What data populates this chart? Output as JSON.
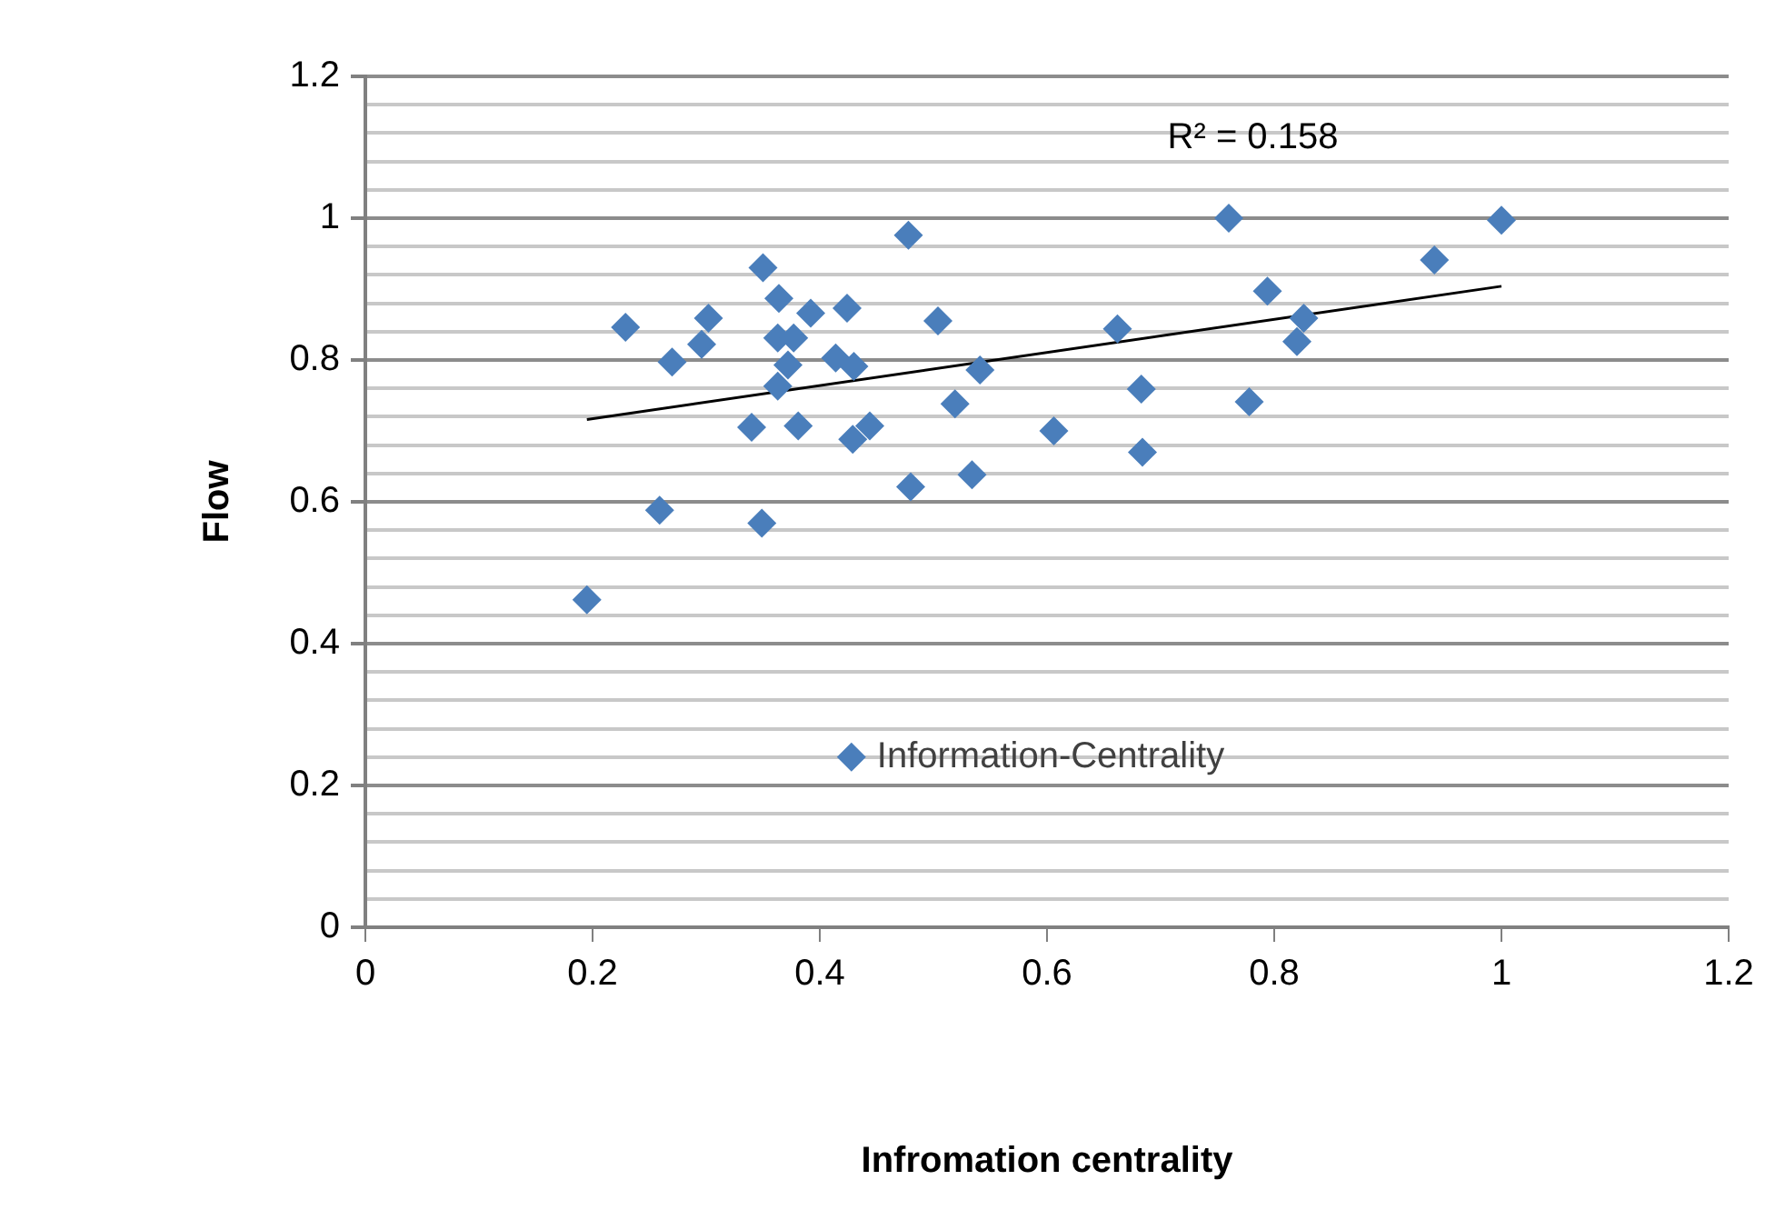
{
  "chart_data": {
    "type": "scatter",
    "xlabel": "Infromation centrality",
    "ylabel": "Flow",
    "xlim": [
      0,
      1.2
    ],
    "xticks": [
      0,
      0.2,
      0.4,
      0.6,
      0.8,
      1,
      1.2
    ],
    "ylim": [
      0,
      1.2
    ],
    "yticks": [
      0,
      {
        "value": 0.04,
        "label": null
      },
      {
        "value": 0.08,
        "label": null
      },
      {
        "value": 0.12,
        "label": null
      },
      {
        "value": 0.16,
        "label": null
      },
      0.2,
      {
        "value": 0.24,
        "label": null
      },
      {
        "value": 0.28,
        "label": null
      },
      {
        "value": 0.32,
        "label": null
      },
      {
        "value": 0.36,
        "label": null
      },
      0.4,
      {
        "value": 0.44,
        "label": null
      },
      {
        "value": 0.48,
        "label": null
      },
      {
        "value": 0.52,
        "label": null
      },
      {
        "value": 0.56,
        "label": null
      },
      0.6,
      {
        "value": 0.64,
        "label": null
      },
      {
        "value": 0.68,
        "label": null
      },
      {
        "value": 0.72,
        "label": null
      },
      {
        "value": 0.76,
        "label": null
      },
      0.8,
      {
        "value": 0.84,
        "label": null
      },
      {
        "value": 0.88,
        "label": null
      },
      {
        "value": 0.92,
        "label": null
      },
      {
        "value": 0.96,
        "label": null
      },
      1,
      {
        "value": 1.04,
        "label": null
      },
      {
        "value": 1.08,
        "label": null
      },
      {
        "value": 1.12,
        "label": null
      },
      {
        "value": 1.16,
        "label": null
      },
      1.2
    ],
    "grid": "y",
    "legend": "bottom",
    "marker": "diamond",
    "annotations": [
      "R² = 0.158"
    ],
    "series": [
      {
        "name": "Information-Centrality",
        "color": "#4a7ebb",
        "x": [
          0.229,
          0.27,
          0.302,
          0.296,
          0.259,
          0.195,
          0.35,
          0.364,
          0.392,
          0.424,
          0.478,
          0.504,
          0.363,
          0.377,
          0.372,
          0.363,
          0.414,
          0.43,
          0.34,
          0.381,
          0.444,
          0.429,
          0.349,
          0.48,
          0.519,
          0.541,
          0.534,
          0.683,
          0.606,
          0.662,
          0.684,
          0.76,
          0.794,
          0.826,
          0.82,
          0.778,
          0.941,
          1.0
        ],
        "values": [
          0.846,
          0.797,
          0.859,
          0.822,
          0.588,
          0.462,
          0.93,
          0.887,
          0.866,
          0.873,
          0.976,
          0.855,
          0.831,
          0.831,
          0.793,
          0.763,
          0.803,
          0.791,
          0.705,
          0.707,
          0.707,
          0.688,
          0.57,
          0.621,
          0.738,
          0.786,
          0.638,
          0.759,
          0.7,
          0.844,
          0.67,
          1.0,
          0.897,
          0.859,
          0.826,
          0.741,
          0.941,
          0.997
        ]
      },
      {
        "type": "line",
        "color": "#000000",
        "marker": "none",
        "x": [
          0.195,
          1.0
        ],
        "values": [
          0.716,
          0.904
        ]
      }
    ]
  }
}
